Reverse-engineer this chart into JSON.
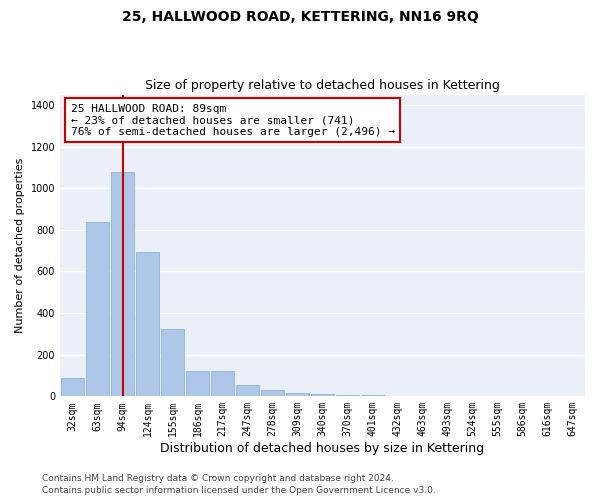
{
  "title": "25, HALLWOOD ROAD, KETTERING, NN16 9RQ",
  "subtitle": "Size of property relative to detached houses in Kettering",
  "xlabel": "Distribution of detached houses by size in Kettering",
  "ylabel": "Number of detached properties",
  "categories": [
    "32sqm",
    "63sqm",
    "94sqm",
    "124sqm",
    "155sqm",
    "186sqm",
    "217sqm",
    "247sqm",
    "278sqm",
    "309sqm",
    "340sqm",
    "370sqm",
    "401sqm",
    "432sqm",
    "463sqm",
    "493sqm",
    "524sqm",
    "555sqm",
    "586sqm",
    "616sqm",
    "647sqm"
  ],
  "values": [
    90,
    840,
    1080,
    695,
    325,
    120,
    120,
    55,
    30,
    18,
    12,
    8,
    5,
    0,
    0,
    0,
    0,
    0,
    0,
    0,
    0
  ],
  "bar_color": "#aec6e8",
  "bar_edge_color": "#7aaed6",
  "vline_index": 2,
  "vline_color": "#cc0000",
  "annotation_text": "25 HALLWOOD ROAD: 89sqm\n← 23% of detached houses are smaller (741)\n76% of semi-detached houses are larger (2,496) →",
  "annotation_box_edgecolor": "#cc0000",
  "ylim": [
    0,
    1450
  ],
  "yticks": [
    0,
    200,
    400,
    600,
    800,
    1000,
    1200,
    1400
  ],
  "plot_bg_color": "#eaeff8",
  "grid_color": "#ffffff",
  "footer_line1": "Contains HM Land Registry data © Crown copyright and database right 2024.",
  "footer_line2": "Contains public sector information licensed under the Open Government Licence v3.0.",
  "title_fontsize": 10,
  "subtitle_fontsize": 9,
  "tick_fontsize": 7,
  "ylabel_fontsize": 8,
  "xlabel_fontsize": 9,
  "annotation_fontsize": 8,
  "footer_fontsize": 6.5
}
